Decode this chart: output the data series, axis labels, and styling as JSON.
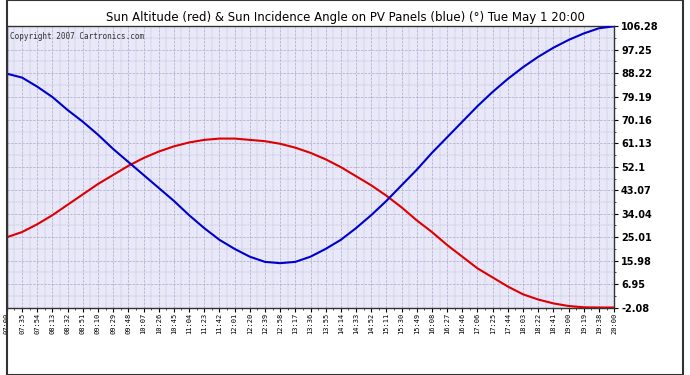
{
  "title": "Sun Altitude (red) & Sun Incidence Angle on PV Panels (blue) (°) Tue May 1 20:00",
  "copyright": "Copyright 2007 Cartronics.com",
  "y_ticks": [
    106.28,
    97.25,
    88.22,
    79.19,
    70.16,
    61.13,
    52.1,
    43.07,
    34.04,
    25.01,
    15.98,
    6.95,
    -2.08
  ],
  "ylim_min": -2.08,
  "ylim_max": 106.28,
  "x_labels": [
    "07:00",
    "07:35",
    "07:54",
    "08:13",
    "08:32",
    "08:51",
    "09:10",
    "09:29",
    "09:48",
    "10:07",
    "10:26",
    "10:45",
    "11:04",
    "11:23",
    "11:42",
    "12:01",
    "12:20",
    "12:39",
    "12:58",
    "13:17",
    "13:36",
    "13:55",
    "14:14",
    "14:33",
    "14:52",
    "15:11",
    "15:30",
    "15:49",
    "16:08",
    "16:27",
    "16:46",
    "17:06",
    "17:25",
    "17:44",
    "18:03",
    "18:22",
    "18:41",
    "19:00",
    "19:19",
    "19:38",
    "20:00"
  ],
  "background_color": "#e8e8f8",
  "grid_color": "#aaaacc",
  "line_red_color": "#dd0000",
  "line_blue_color": "#0000cc",
  "title_bg": "#ffffff",
  "border_color": "#333333",
  "red_points": [
    25.0,
    27.0,
    30.0,
    33.5,
    37.5,
    41.5,
    45.5,
    49.0,
    52.5,
    55.5,
    58.0,
    60.0,
    61.5,
    62.5,
    63.0,
    63.0,
    62.5,
    62.0,
    61.0,
    59.5,
    57.5,
    55.0,
    52.0,
    48.5,
    45.0,
    41.0,
    36.5,
    31.5,
    27.0,
    22.0,
    17.5,
    13.0,
    9.5,
    6.0,
    3.0,
    1.0,
    -0.5,
    -1.5,
    -2.0,
    -2.08,
    -2.08
  ],
  "blue_points": [
    88.0,
    86.5,
    83.0,
    79.0,
    74.0,
    69.5,
    64.5,
    59.0,
    54.0,
    49.0,
    44.0,
    39.0,
    33.5,
    28.5,
    24.0,
    20.5,
    17.5,
    15.5,
    15.0,
    15.5,
    17.5,
    20.5,
    24.0,
    28.5,
    33.5,
    39.0,
    45.0,
    51.0,
    57.5,
    63.5,
    69.5,
    75.5,
    81.0,
    86.0,
    90.5,
    94.5,
    98.0,
    101.0,
    103.5,
    105.5,
    106.28
  ]
}
